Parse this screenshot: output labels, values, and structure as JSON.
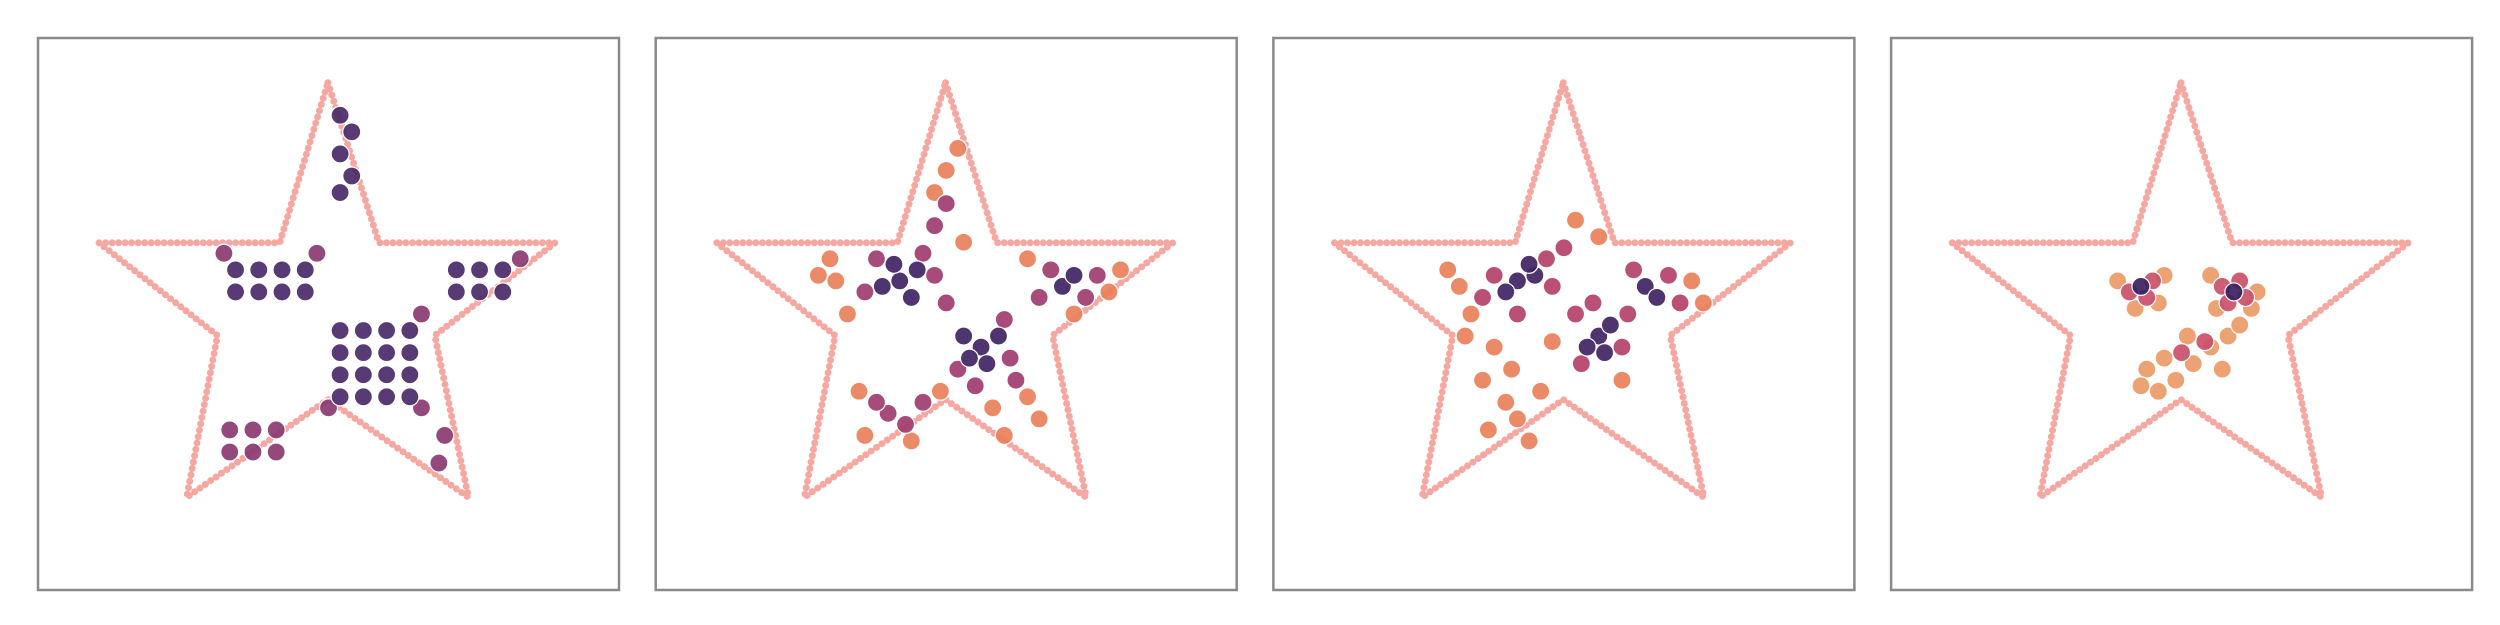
{
  "chart_data": [
    {
      "type": "scatter",
      "xlim": [
        0,
        100
      ],
      "ylim": [
        0,
        100
      ],
      "outline": {
        "color": "#f5a8a2",
        "x": [
          49.9,
          58.7,
          89.0,
          68.3,
          74.1,
          49.9,
          25.6,
          30.9,
          10.5,
          41.6,
          49.9
        ],
        "y": [
          91.9,
          62.9,
          62.9,
          46.1,
          16.8,
          34.5,
          16.8,
          46.1,
          62.9,
          62.9,
          91.9
        ]
      },
      "series": [
        {
          "color": "#8b3a72",
          "x": [
            33,
            37,
            41,
            33,
            37,
            41,
            69,
            70,
            32,
            48,
            83,
            50,
            66,
            66
          ],
          "y": [
            25,
            25,
            25,
            29,
            29,
            29,
            23,
            28,
            61,
            61,
            60,
            33,
            33,
            50
          ]
        },
        {
          "color": "#4a2a68",
          "x": [
            52,
            56,
            60,
            64,
            52,
            56,
            60,
            64,
            52,
            56,
            60,
            64,
            52,
            56,
            60,
            64,
            34,
            38,
            42,
            46,
            34,
            38,
            42,
            46,
            72,
            76,
            80,
            72,
            76,
            80,
            52,
            54,
            52,
            54,
            52
          ],
          "y": [
            35,
            35,
            35,
            35,
            39,
            39,
            39,
            39,
            43,
            43,
            43,
            43,
            47,
            47,
            47,
            47,
            54,
            54,
            54,
            54,
            58,
            58,
            58,
            58,
            54,
            54,
            54,
            58,
            58,
            58,
            72,
            75,
            79,
            83,
            86
          ]
        }
      ]
    },
    {
      "type": "scatter",
      "xlim": [
        0,
        100
      ],
      "ylim": [
        0,
        100
      ],
      "outline": {
        "color": "#f5a8a2",
        "x": [
          49.9,
          58.7,
          89.0,
          68.3,
          74.1,
          49.9,
          25.6,
          30.9,
          10.5,
          41.6,
          49.9
        ],
        "y": [
          91.9,
          62.9,
          62.9,
          46.1,
          16.8,
          34.5,
          16.8,
          46.1,
          62.9,
          62.9,
          91.9
        ]
      },
      "series": [
        {
          "color": "#e9805a",
          "x": [
            31,
            28,
            33,
            50,
            52,
            48,
            53,
            64,
            66,
            58,
            36,
            44,
            35,
            49,
            78,
            80,
            64,
            72,
            30,
            60
          ],
          "y": [
            56,
            57,
            50,
            76,
            80,
            72,
            63,
            35,
            31,
            33,
            28,
            27,
            36,
            36,
            54,
            58,
            60,
            50,
            60,
            28
          ]
        },
        {
          "color": "#a03c6f",
          "x": [
            36,
            48,
            46,
            38,
            50,
            52,
            61,
            60,
            55,
            66,
            74,
            68,
            76,
            40,
            43,
            38,
            46,
            48,
            50,
            62
          ],
          "y": [
            54,
            57,
            61,
            60,
            52,
            40,
            42,
            49,
            37,
            53,
            53,
            58,
            57,
            32,
            30,
            34,
            34,
            66,
            70,
            38
          ]
        },
        {
          "color": "#3f2463",
          "x": [
            42,
            45,
            39,
            44,
            41,
            56,
            59,
            54,
            57,
            53,
            70,
            72
          ],
          "y": [
            56,
            58,
            55,
            53,
            59,
            44,
            46,
            42,
            41,
            46,
            55,
            57
          ]
        }
      ]
    },
    {
      "type": "scatter",
      "xlim": [
        0,
        100
      ],
      "ylim": [
        0,
        100
      ],
      "outline": {
        "color": "#f5a8a2",
        "x": [
          49.9,
          58.7,
          89.0,
          68.3,
          74.1,
          49.9,
          25.6,
          30.9,
          10.5,
          41.6,
          49.9
        ],
        "y": [
          91.9,
          62.9,
          62.9,
          46.1,
          16.8,
          34.5,
          16.8,
          46.1,
          62.9,
          62.9,
          91.9
        ]
      },
      "series": [
        {
          "color": "#e9805a",
          "x": [
            32,
            30,
            34,
            38,
            41,
            36,
            40,
            37,
            42,
            46,
            52,
            56,
            72,
            74,
            60,
            48,
            33,
            44
          ],
          "y": [
            55,
            58,
            50,
            44,
            40,
            38,
            34,
            29,
            31,
            36,
            67,
            64,
            56,
            52,
            38,
            45,
            46,
            27
          ]
        },
        {
          "color": "#b5416a",
          "x": [
            38,
            48,
            47,
            36,
            52,
            60,
            53,
            61,
            68,
            62,
            70,
            50,
            55,
            42
          ],
          "y": [
            57,
            55,
            60,
            53,
            50,
            44,
            41,
            50,
            57,
            58,
            52,
            62,
            52,
            50
          ]
        },
        {
          "color": "#3f2463",
          "x": [
            42,
            45,
            40,
            44,
            56,
            58,
            54,
            57,
            64,
            66
          ],
          "y": [
            56,
            57,
            54,
            59,
            46,
            48,
            44,
            43,
            55,
            53
          ]
        }
      ]
    },
    {
      "type": "scatter",
      "xlim": [
        0,
        100
      ],
      "ylim": [
        0,
        100
      ],
      "outline": {
        "color": "#f5a8a2",
        "x": [
          49.9,
          58.7,
          89.0,
          68.3,
          74.1,
          49.9,
          25.6,
          30.9,
          10.5,
          41.6,
          49.9
        ],
        "y": [
          91.9,
          62.9,
          62.9,
          46.1,
          16.8,
          34.5,
          16.8,
          46.1,
          62.9,
          62.9,
          91.9
        ]
      },
      "series": [
        {
          "color": "#eb9a68",
          "x": [
            39,
            47,
            42,
            46,
            55,
            63,
            62,
            56,
            44,
            47,
            52,
            55,
            58,
            49,
            43,
            51,
            60,
            46,
            57
          ],
          "y": [
            56,
            57,
            51,
            52,
            57,
            54,
            51,
            51,
            40,
            42,
            41,
            44,
            46,
            38,
            37,
            46,
            48,
            36,
            40
          ]
        },
        {
          "color": "#c9506a",
          "x": [
            41,
            45,
            44,
            57,
            61,
            60,
            58,
            50,
            54
          ],
          "y": [
            54,
            56,
            53,
            55,
            53,
            56,
            52,
            43,
            45
          ]
        },
        {
          "color": "#3a2260",
          "x": [
            43,
            59
          ],
          "y": [
            55,
            54
          ]
        }
      ]
    }
  ]
}
